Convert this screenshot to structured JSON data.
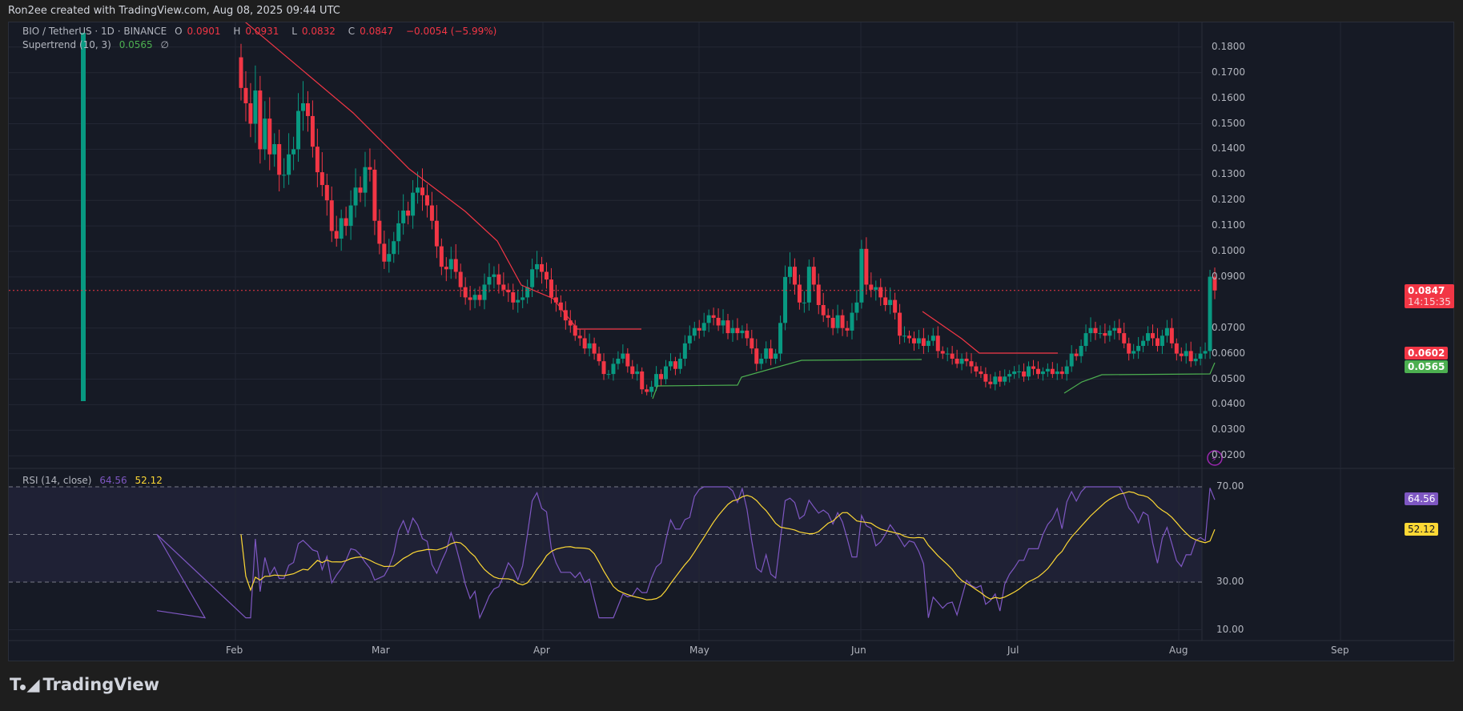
{
  "header": {
    "caption": "Ron2ee created with TradingView.com, Aug 08, 2025 09:44 UTC"
  },
  "legend": {
    "symbol": "BIO / TetherUS · 1D · BINANCE",
    "o_label": "O",
    "o": "0.0901",
    "h_label": "H",
    "h": "0.0931",
    "l_label": "L",
    "l": "0.0832",
    "c_label": "C",
    "c": "0.0847",
    "change": "−0.0054 (−5.99%)",
    "supertrend_label": "Supertrend (10, 3)",
    "supertrend_value": "0.0565",
    "supertrend_extra": "∅",
    "rsi_label": "RSI (14, close)",
    "rsi_value": "64.56",
    "rsi_ma_value": "52.12"
  },
  "price_axis": [
    "0.1800",
    "0.1700",
    "0.1600",
    "0.1500",
    "0.1400",
    "0.1300",
    "0.1200",
    "0.1100",
    "0.1000",
    "0.0900",
    "0.0700",
    "0.0600",
    "0.0500",
    "0.0400",
    "0.0300",
    "0.0200"
  ],
  "rsi_axis": [
    "70.00",
    "30.00",
    "10.00"
  ],
  "time_axis": [
    "Feb",
    "Mar",
    "Apr",
    "May",
    "Jun",
    "Jul",
    "Aug",
    "Sep"
  ],
  "tags": {
    "last_price": "0.0847",
    "countdown": "14:15:35",
    "supertrend_up": "0.0602",
    "supertrend_down": "0.0565",
    "rsi": "64.56",
    "rsi_ma": "52.12"
  },
  "colors": {
    "up": "#089981",
    "down": "#f23645",
    "rsi": "#7e57c2",
    "rsi_ma": "#fdd835",
    "st_up": "#4caf50",
    "st_down": "#f23645"
  },
  "logo": {
    "text": "TradingView"
  },
  "chart_data": {
    "type": "candlestick",
    "title": "BIO / TetherUS · 1D · BINANCE",
    "ylim": [
      0.015,
      0.185
    ],
    "x_labels": [
      "Feb",
      "Mar",
      "Apr",
      "May",
      "Jun",
      "Jul",
      "Aug",
      "Sep"
    ],
    "last": {
      "open": 0.0901,
      "high": 0.0931,
      "low": 0.0832,
      "close": 0.0847,
      "change": -0.0054,
      "change_pct": -5.99
    },
    "supertrend": {
      "period": 10,
      "multiplier": 3,
      "value": 0.0565
    },
    "rsi": {
      "period": 14,
      "value": 64.56,
      "ma": 52.12,
      "bands": [
        70,
        50,
        30
      ]
    },
    "closes": [
      0.164,
      0.158,
      0.15,
      0.163,
      0.14,
      0.152,
      0.138,
      0.142,
      0.13,
      0.13,
      0.138,
      0.14,
      0.155,
      0.158,
      0.153,
      0.141,
      0.131,
      0.126,
      0.12,
      0.108,
      0.105,
      0.113,
      0.11,
      0.118,
      0.125,
      0.123,
      0.133,
      0.132,
      0.112,
      0.103,
      0.096,
      0.099,
      0.104,
      0.111,
      0.116,
      0.114,
      0.123,
      0.125,
      0.122,
      0.118,
      0.112,
      0.102,
      0.094,
      0.093,
      0.097,
      0.092,
      0.086,
      0.082,
      0.081,
      0.083,
      0.081,
      0.087,
      0.09,
      0.091,
      0.087,
      0.085,
      0.084,
      0.08,
      0.081,
      0.082,
      0.086,
      0.093,
      0.095,
      0.092,
      0.089,
      0.082,
      0.08,
      0.077,
      0.073,
      0.071,
      0.067,
      0.066,
      0.062,
      0.064,
      0.06,
      0.057,
      0.052,
      0.052,
      0.056,
      0.058,
      0.06,
      0.055,
      0.052,
      0.053,
      0.046,
      0.045,
      0.047,
      0.052,
      0.05,
      0.055,
      0.057,
      0.054,
      0.058,
      0.064,
      0.067,
      0.07,
      0.069,
      0.072,
      0.075,
      0.074,
      0.071,
      0.073,
      0.068,
      0.07,
      0.068,
      0.069,
      0.066,
      0.062,
      0.056,
      0.058,
      0.062,
      0.058,
      0.06,
      0.072,
      0.09,
      0.094,
      0.087,
      0.08,
      0.08,
      0.094,
      0.087,
      0.079,
      0.075,
      0.074,
      0.07,
      0.075,
      0.07,
      0.069,
      0.076,
      0.08,
      0.101,
      0.087,
      0.085,
      0.086,
      0.082,
      0.079,
      0.081,
      0.076,
      0.067,
      0.067,
      0.066,
      0.064,
      0.066,
      0.063,
      0.065,
      0.067,
      0.061,
      0.06,
      0.06,
      0.058,
      0.056,
      0.058,
      0.057,
      0.055,
      0.053,
      0.052,
      0.049,
      0.048,
      0.051,
      0.049,
      0.051,
      0.052,
      0.053,
      0.053,
      0.051,
      0.055,
      0.054,
      0.052,
      0.053,
      0.054,
      0.052,
      0.053,
      0.052,
      0.055,
      0.06,
      0.059,
      0.063,
      0.068,
      0.07,
      0.068,
      0.068,
      0.067,
      0.069,
      0.07,
      0.068,
      0.064,
      0.06,
      0.061,
      0.063,
      0.065,
      0.068,
      0.066,
      0.063,
      0.067,
      0.07,
      0.064,
      0.06,
      0.059,
      0.061,
      0.057,
      0.058,
      0.06,
      0.061,
      0.0901,
      0.0847
    ]
  }
}
